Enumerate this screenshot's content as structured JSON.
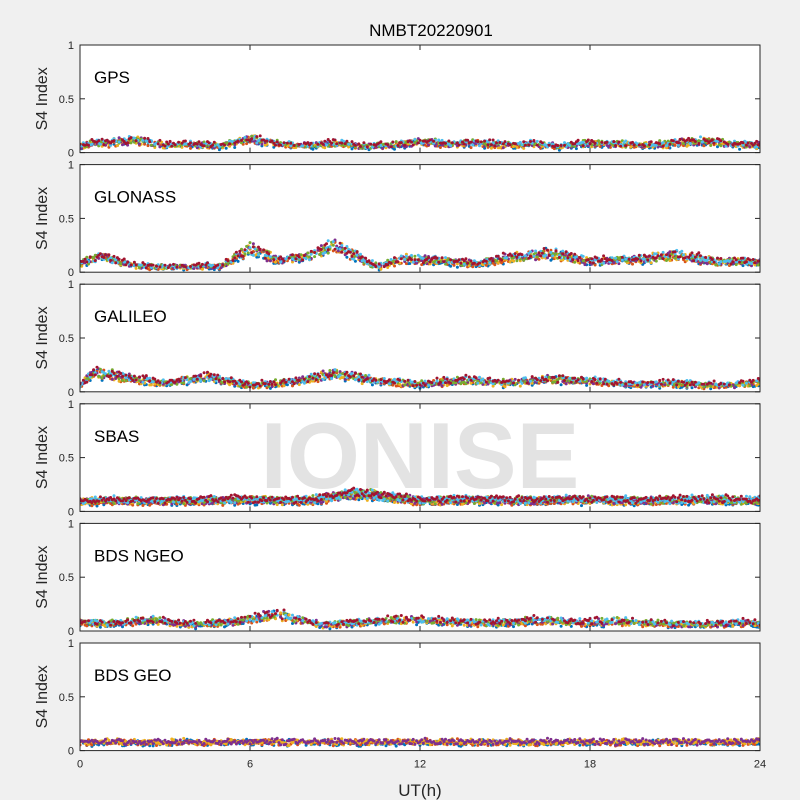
{
  "chart_data": {
    "type": "scatter",
    "title": "NMBT20220901",
    "xlabel": "UT(h)",
    "ylabel": "S4 Index",
    "xlim": [
      0,
      24
    ],
    "ylim": [
      0,
      1
    ],
    "xticks": [
      "0",
      "6",
      "12",
      "18",
      "24"
    ],
    "yticks": [
      "0",
      "0.5",
      "1"
    ],
    "watermark": "IONISE",
    "series_colors": [
      "#0072bd",
      "#d95319",
      "#edb120",
      "#7e2f8e",
      "#77ac30",
      "#4dbeee",
      "#a2142f"
    ],
    "panels": [
      {
        "label": "GPS",
        "samples": [
          {
            "t": 0.0,
            "s4": 0.06
          },
          {
            "t": 0.5,
            "s4": 0.1
          },
          {
            "t": 1.0,
            "s4": 0.09
          },
          {
            "t": 2.0,
            "s4": 0.12
          },
          {
            "t": 3.0,
            "s4": 0.07
          },
          {
            "t": 4.0,
            "s4": 0.08
          },
          {
            "t": 5.0,
            "s4": 0.06
          },
          {
            "t": 6.0,
            "s4": 0.13
          },
          {
            "t": 7.0,
            "s4": 0.08
          },
          {
            "t": 8.0,
            "s4": 0.07
          },
          {
            "t": 9.0,
            "s4": 0.09
          },
          {
            "t": 10.0,
            "s4": 0.06
          },
          {
            "t": 11.0,
            "s4": 0.07
          },
          {
            "t": 12.0,
            "s4": 0.1
          },
          {
            "t": 13.0,
            "s4": 0.08
          },
          {
            "t": 14.0,
            "s4": 0.09
          },
          {
            "t": 15.0,
            "s4": 0.07
          },
          {
            "t": 16.0,
            "s4": 0.08
          },
          {
            "t": 17.0,
            "s4": 0.06
          },
          {
            "t": 18.0,
            "s4": 0.09
          },
          {
            "t": 19.0,
            "s4": 0.08
          },
          {
            "t": 20.0,
            "s4": 0.07
          },
          {
            "t": 21.0,
            "s4": 0.09
          },
          {
            "t": 22.0,
            "s4": 0.11
          },
          {
            "t": 23.0,
            "s4": 0.08
          },
          {
            "t": 24.0,
            "s4": 0.07
          }
        ]
      },
      {
        "label": "GLONASS",
        "samples": [
          {
            "t": 0.0,
            "s4": 0.08
          },
          {
            "t": 0.7,
            "s4": 0.15
          },
          {
            "t": 2.0,
            "s4": 0.06
          },
          {
            "t": 3.5,
            "s4": 0.05
          },
          {
            "t": 5.0,
            "s4": 0.06
          },
          {
            "t": 6.0,
            "s4": 0.22
          },
          {
            "t": 7.0,
            "s4": 0.12
          },
          {
            "t": 8.0,
            "s4": 0.14
          },
          {
            "t": 9.0,
            "s4": 0.25
          },
          {
            "t": 10.5,
            "s4": 0.05
          },
          {
            "t": 11.5,
            "s4": 0.13
          },
          {
            "t": 13.0,
            "s4": 0.1
          },
          {
            "t": 14.0,
            "s4": 0.08
          },
          {
            "t": 15.0,
            "s4": 0.13
          },
          {
            "t": 16.5,
            "s4": 0.18
          },
          {
            "t": 18.0,
            "s4": 0.1
          },
          {
            "t": 19.5,
            "s4": 0.12
          },
          {
            "t": 21.0,
            "s4": 0.16
          },
          {
            "t": 22.5,
            "s4": 0.1
          },
          {
            "t": 24.0,
            "s4": 0.1
          }
        ]
      },
      {
        "label": "GALILEO",
        "samples": [
          {
            "t": 0.0,
            "s4": 0.07
          },
          {
            "t": 0.5,
            "s4": 0.18
          },
          {
            "t": 1.5,
            "s4": 0.14
          },
          {
            "t": 3.0,
            "s4": 0.08
          },
          {
            "t": 4.5,
            "s4": 0.14
          },
          {
            "t": 6.0,
            "s4": 0.06
          },
          {
            "t": 7.5,
            "s4": 0.09
          },
          {
            "t": 9.0,
            "s4": 0.17
          },
          {
            "t": 10.5,
            "s4": 0.1
          },
          {
            "t": 12.0,
            "s4": 0.07
          },
          {
            "t": 13.5,
            "s4": 0.11
          },
          {
            "t": 15.0,
            "s4": 0.08
          },
          {
            "t": 16.5,
            "s4": 0.12
          },
          {
            "t": 18.0,
            "s4": 0.1
          },
          {
            "t": 19.5,
            "s4": 0.07
          },
          {
            "t": 21.0,
            "s4": 0.08
          },
          {
            "t": 22.5,
            "s4": 0.06
          },
          {
            "t": 24.0,
            "s4": 0.09
          }
        ]
      },
      {
        "label": "SBAS",
        "samples": [
          {
            "t": 0.0,
            "s4": 0.1
          },
          {
            "t": 2.0,
            "s4": 0.1
          },
          {
            "t": 4.0,
            "s4": 0.1
          },
          {
            "t": 6.0,
            "s4": 0.11
          },
          {
            "t": 8.0,
            "s4": 0.1
          },
          {
            "t": 9.8,
            "s4": 0.17
          },
          {
            "t": 12.0,
            "s4": 0.1
          },
          {
            "t": 14.0,
            "s4": 0.11
          },
          {
            "t": 16.0,
            "s4": 0.1
          },
          {
            "t": 18.0,
            "s4": 0.11
          },
          {
            "t": 20.0,
            "s4": 0.1
          },
          {
            "t": 22.0,
            "s4": 0.11
          },
          {
            "t": 24.0,
            "s4": 0.1
          }
        ]
      },
      {
        "label": "BDS NGEO",
        "samples": [
          {
            "t": 0.0,
            "s4": 0.08
          },
          {
            "t": 1.0,
            "s4": 0.07
          },
          {
            "t": 2.5,
            "s4": 0.1
          },
          {
            "t": 4.0,
            "s4": 0.06
          },
          {
            "t": 5.5,
            "s4": 0.09
          },
          {
            "t": 7.0,
            "s4": 0.16
          },
          {
            "t": 8.5,
            "s4": 0.06
          },
          {
            "t": 10.0,
            "s4": 0.08
          },
          {
            "t": 11.5,
            "s4": 0.11
          },
          {
            "t": 13.0,
            "s4": 0.09
          },
          {
            "t": 14.5,
            "s4": 0.07
          },
          {
            "t": 16.0,
            "s4": 0.1
          },
          {
            "t": 17.5,
            "s4": 0.08
          },
          {
            "t": 19.0,
            "s4": 0.09
          },
          {
            "t": 20.5,
            "s4": 0.07
          },
          {
            "t": 22.0,
            "s4": 0.06
          },
          {
            "t": 23.5,
            "s4": 0.08
          },
          {
            "t": 24.0,
            "s4": 0.06
          }
        ]
      },
      {
        "label": "BDS GEO",
        "samples": [
          {
            "t": 0.0,
            "s4": 0.08
          },
          {
            "t": 3.0,
            "s4": 0.08
          },
          {
            "t": 6.0,
            "s4": 0.08
          },
          {
            "t": 9.0,
            "s4": 0.08
          },
          {
            "t": 12.0,
            "s4": 0.08
          },
          {
            "t": 15.0,
            "s4": 0.08
          },
          {
            "t": 18.0,
            "s4": 0.08
          },
          {
            "t": 21.0,
            "s4": 0.08
          },
          {
            "t": 24.0,
            "s4": 0.08
          }
        ]
      }
    ]
  }
}
